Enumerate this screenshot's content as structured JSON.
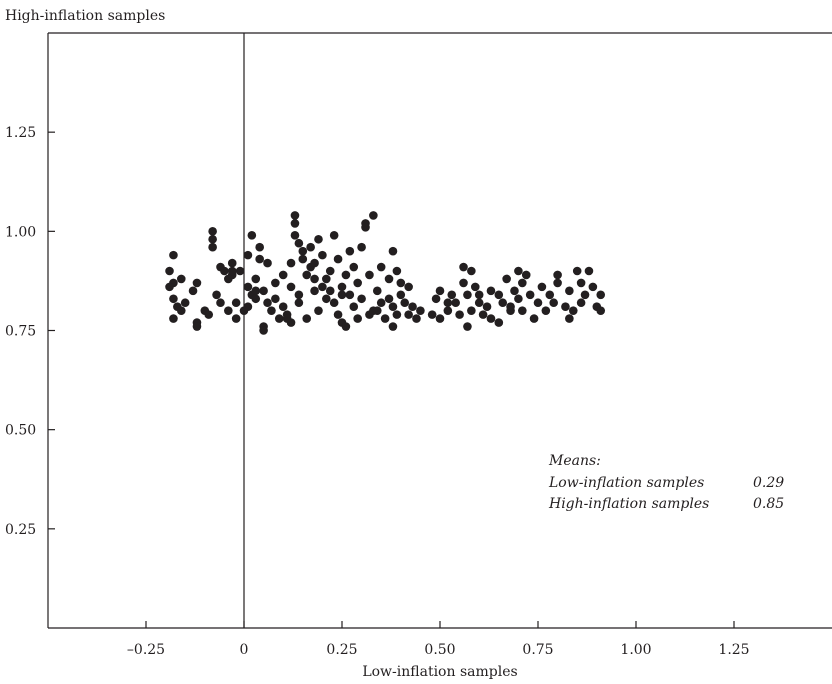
{
  "chart_data": {
    "type": "scatter",
    "title": "",
    "ylabel": "High-inflation samples",
    "xlabel": "Low-inflation samples",
    "xlim": [
      -0.5,
      1.5
    ],
    "ylim": [
      0,
      1.5
    ],
    "grid": false,
    "x_ticks": [
      {
        "value": -0.25,
        "label": "–0.25"
      },
      {
        "value": 0,
        "label": "0"
      },
      {
        "value": 0.25,
        "label": "0.25"
      },
      {
        "value": 0.5,
        "label": "0.50"
      },
      {
        "value": 0.75,
        "label": "0.75"
      },
      {
        "value": 1.0,
        "label": "1.00"
      },
      {
        "value": 1.25,
        "label": "1.25"
      }
    ],
    "y_ticks": [
      {
        "value": 0.25,
        "label": "0.25"
      },
      {
        "value": 0.5,
        "label": "0.50"
      },
      {
        "value": 0.75,
        "label": "0.75"
      },
      {
        "value": 1.0,
        "label": "1.00"
      },
      {
        "value": 1.25,
        "label": "1.25"
      }
    ],
    "reference_line_x": 0,
    "marker_color": "#231f20",
    "annotation": {
      "heading": "Means:",
      "placement": "lower-right",
      "rows": [
        {
          "label": "Low-inflation samples",
          "value": "0.29"
        },
        {
          "label": "High-inflation samples",
          "value": "0.85"
        }
      ]
    },
    "points": [
      [
        -0.18,
        0.94
      ],
      [
        -0.19,
        0.9
      ],
      [
        -0.18,
        0.87
      ],
      [
        -0.18,
        0.83
      ],
      [
        -0.17,
        0.81
      ],
      [
        -0.18,
        0.78
      ],
      [
        -0.16,
        0.88
      ],
      [
        -0.16,
        0.8
      ],
      [
        -0.15,
        0.82
      ],
      [
        -0.19,
        0.86
      ],
      [
        -0.13,
        0.85
      ],
      [
        -0.12,
        0.87
      ],
      [
        -0.12,
        0.77
      ],
      [
        -0.12,
        0.76
      ],
      [
        -0.1,
        0.8
      ],
      [
        -0.09,
        0.79
      ],
      [
        -0.08,
        1.0
      ],
      [
        -0.08,
        0.98
      ],
      [
        -0.08,
        0.96
      ],
      [
        -0.07,
        0.84
      ],
      [
        -0.06,
        0.91
      ],
      [
        -0.06,
        0.82
      ],
      [
        -0.05,
        0.9
      ],
      [
        -0.04,
        0.88
      ],
      [
        -0.04,
        0.8
      ],
      [
        -0.03,
        0.92
      ],
      [
        -0.03,
        0.89
      ],
      [
        -0.02,
        0.78
      ],
      [
        -0.02,
        0.82
      ],
      [
        -0.01,
        0.9
      ],
      [
        0.01,
        0.94
      ],
      [
        0.01,
        0.86
      ],
      [
        0.01,
        0.81
      ],
      [
        0.02,
        0.99
      ],
      [
        0.02,
        0.84
      ],
      [
        0.03,
        0.88
      ],
      [
        0.03,
        0.83
      ],
      [
        0.04,
        0.96
      ],
      [
        0.04,
        0.93
      ],
      [
        0.05,
        0.85
      ],
      [
        0.05,
        0.76
      ],
      [
        0.05,
        0.75
      ],
      [
        0.06,
        0.92
      ],
      [
        0.06,
        0.82
      ],
      [
        0.07,
        0.8
      ],
      [
        0.08,
        0.87
      ],
      [
        0.08,
        0.83
      ],
      [
        0.09,
        0.78
      ],
      [
        0.1,
        0.89
      ],
      [
        0.1,
        0.81
      ],
      [
        0.11,
        0.79
      ],
      [
        0.12,
        0.92
      ],
      [
        0.12,
        0.86
      ],
      [
        0.12,
        0.77
      ],
      [
        0.13,
        1.04
      ],
      [
        0.13,
        1.02
      ],
      [
        0.13,
        0.99
      ],
      [
        0.14,
        0.97
      ],
      [
        0.14,
        0.84
      ],
      [
        0.14,
        0.82
      ],
      [
        0.15,
        0.95
      ],
      [
        0.15,
        0.93
      ],
      [
        0.16,
        0.89
      ],
      [
        0.16,
        0.78
      ],
      [
        0.17,
        0.96
      ],
      [
        0.17,
        0.91
      ],
      [
        0.18,
        0.88
      ],
      [
        0.18,
        0.85
      ],
      [
        0.19,
        0.98
      ],
      [
        0.19,
        0.8
      ],
      [
        0.2,
        0.94
      ],
      [
        0.2,
        0.86
      ],
      [
        0.21,
        0.83
      ],
      [
        0.21,
        0.88
      ],
      [
        0.22,
        0.9
      ],
      [
        0.22,
        0.85
      ],
      [
        0.23,
        0.99
      ],
      [
        0.23,
        0.82
      ],
      [
        0.24,
        0.93
      ],
      [
        0.24,
        0.79
      ],
      [
        0.25,
        0.86
      ],
      [
        0.25,
        0.77
      ],
      [
        0.26,
        0.89
      ],
      [
        0.26,
        0.76
      ],
      [
        0.27,
        0.95
      ],
      [
        0.27,
        0.84
      ],
      [
        0.28,
        0.91
      ],
      [
        0.28,
        0.81
      ],
      [
        0.29,
        0.87
      ],
      [
        0.29,
        0.78
      ],
      [
        0.3,
        0.96
      ],
      [
        0.3,
        0.83
      ],
      [
        0.31,
        1.02
      ],
      [
        0.31,
        1.01
      ],
      [
        0.32,
        0.89
      ],
      [
        0.32,
        0.79
      ],
      [
        0.33,
        1.04
      ],
      [
        0.33,
        0.8
      ],
      [
        0.34,
        0.85
      ],
      [
        0.35,
        0.82
      ],
      [
        0.35,
        0.91
      ],
      [
        0.36,
        0.78
      ],
      [
        0.37,
        0.88
      ],
      [
        0.37,
        0.83
      ],
      [
        0.38,
        0.95
      ],
      [
        0.38,
        0.81
      ],
      [
        0.38,
        0.76
      ],
      [
        0.39,
        0.9
      ],
      [
        0.39,
        0.79
      ],
      [
        0.4,
        0.84
      ],
      [
        0.41,
        0.82
      ],
      [
        0.42,
        0.86
      ],
      [
        0.42,
        0.79
      ],
      [
        0.43,
        0.81
      ],
      [
        0.44,
        0.78
      ],
      [
        0.45,
        0.8
      ],
      [
        0.48,
        0.79
      ],
      [
        0.49,
        0.83
      ],
      [
        0.5,
        0.85
      ],
      [
        0.5,
        0.78
      ],
      [
        0.52,
        0.8
      ],
      [
        0.53,
        0.84
      ],
      [
        0.54,
        0.82
      ],
      [
        0.55,
        0.79
      ],
      [
        0.56,
        0.91
      ],
      [
        0.56,
        0.87
      ],
      [
        0.57,
        0.84
      ],
      [
        0.57,
        0.76
      ],
      [
        0.58,
        0.9
      ],
      [
        0.58,
        0.8
      ],
      [
        0.59,
        0.86
      ],
      [
        0.6,
        0.82
      ],
      [
        0.61,
        0.79
      ],
      [
        0.62,
        0.81
      ],
      [
        0.63,
        0.85
      ],
      [
        0.63,
        0.78
      ],
      [
        0.65,
        0.84
      ],
      [
        0.65,
        0.77
      ],
      [
        0.66,
        0.82
      ],
      [
        0.67,
        0.88
      ],
      [
        0.68,
        0.8
      ],
      [
        0.69,
        0.85
      ],
      [
        0.7,
        0.9
      ],
      [
        0.7,
        0.83
      ],
      [
        0.71,
        0.87
      ],
      [
        0.71,
        0.8
      ],
      [
        0.72,
        0.89
      ],
      [
        0.73,
        0.84
      ],
      [
        0.74,
        0.78
      ],
      [
        0.75,
        0.82
      ],
      [
        0.76,
        0.86
      ],
      [
        0.77,
        0.8
      ],
      [
        0.78,
        0.84
      ],
      [
        0.8,
        0.89
      ],
      [
        0.8,
        0.87
      ],
      [
        0.82,
        0.81
      ],
      [
        0.83,
        0.78
      ],
      [
        0.83,
        0.85
      ],
      [
        0.84,
        0.8
      ],
      [
        0.85,
        0.9
      ],
      [
        0.86,
        0.87
      ],
      [
        0.86,
        0.82
      ],
      [
        0.87,
        0.84
      ],
      [
        0.88,
        0.9
      ],
      [
        0.89,
        0.86
      ],
      [
        0.9,
        0.81
      ],
      [
        0.91,
        0.84
      ],
      [
        0.91,
        0.8
      ],
      [
        -0.03,
        0.9
      ],
      [
        0.0,
        0.8
      ],
      [
        0.03,
        0.85
      ],
      [
        0.11,
        0.78
      ],
      [
        0.18,
        0.92
      ],
      [
        0.25,
        0.84
      ],
      [
        0.34,
        0.8
      ],
      [
        0.4,
        0.87
      ],
      [
        0.52,
        0.82
      ],
      [
        0.6,
        0.84
      ],
      [
        0.68,
        0.81
      ],
      [
        0.79,
        0.82
      ]
    ]
  }
}
